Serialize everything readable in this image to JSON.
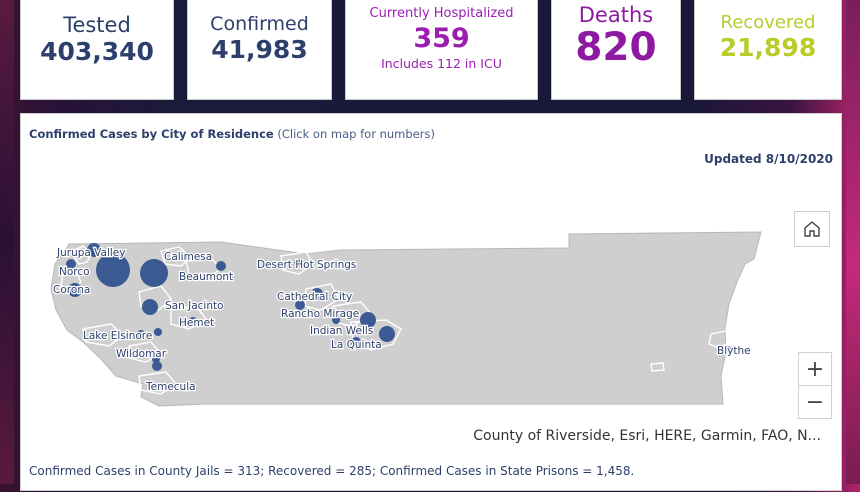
{
  "stats": {
    "tested": {
      "label": "Tested",
      "value": "403,340",
      "color": "#2d3f6b"
    },
    "confirmed": {
      "label": "Confirmed",
      "value": "41,983",
      "color": "#2d3f6b"
    },
    "hospitalized": {
      "label": "Currently Hospitalized",
      "value": "359",
      "note": "Includes 112 in ICU",
      "color": "#9b1eb0"
    },
    "deaths": {
      "label": "Deaths",
      "value": "820",
      "color": "#8d1aa0"
    },
    "recovered": {
      "label": "Recovered",
      "value": "21,898",
      "color": "#b8cc2a"
    }
  },
  "map_panel": {
    "title": "Confirmed Cases by City of Residence",
    "subtitle": " (Click on map for numbers)",
    "updated": "Updated 8/10/2020",
    "attribution": "County of Riverside, Esri, HERE, Garmin, FAO, N...",
    "zoom_in": "+",
    "zoom_out": "−",
    "home_icon": "home-icon",
    "marker_color": "#3b5a94",
    "cities": [
      "Jurupa Valley",
      "Norco",
      "Corona",
      "Calimesa",
      "Beaumont",
      "San Jacinto",
      "Hemet",
      "Lake Elsinore",
      "Wildomar",
      "Temecula",
      "Desert Hot Springs",
      "Cathedral City",
      "Rancho Mirage",
      "Indian Wells",
      "La Quinta",
      "Blythe"
    ]
  },
  "footer": "Confirmed Cases in County Jails = 313; Recovered = 285; Confirmed Cases in State Prisons = 1,458."
}
